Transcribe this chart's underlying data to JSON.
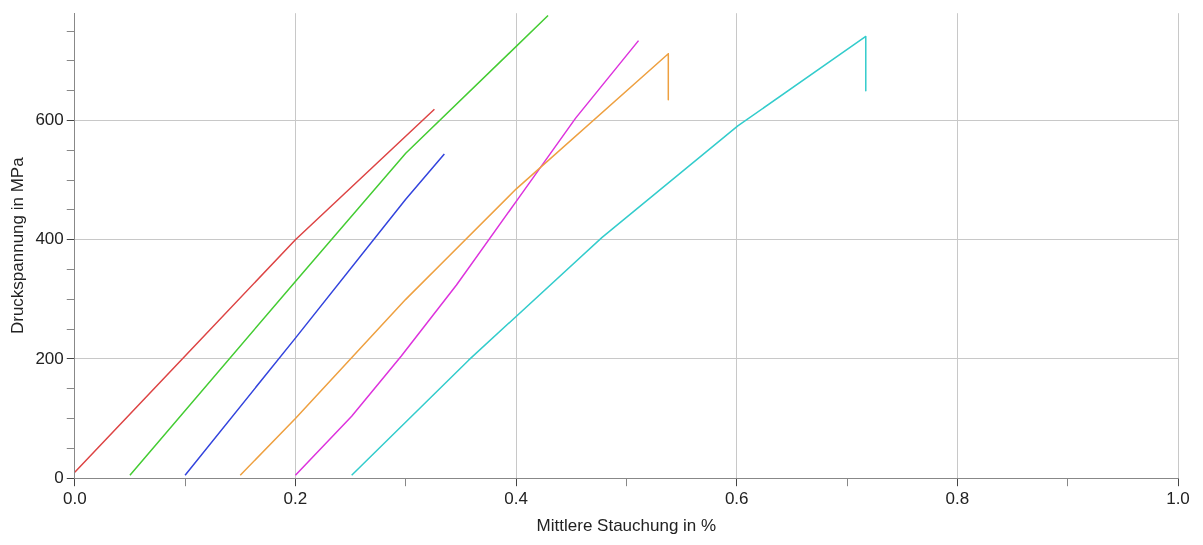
{
  "chart_data": {
    "type": "line",
    "xlabel": "Mittlere Stauchung in %",
    "ylabel": "Druckspannung in MPa",
    "xlim": [
      0,
      1
    ],
    "ylim": [
      0,
      780
    ],
    "xticks": [
      {
        "value": 0,
        "label": "0.0"
      },
      {
        "value": 0.1,
        "label": null
      },
      {
        "value": 0.2,
        "label": "0.2"
      },
      {
        "value": 0.3,
        "label": null
      },
      {
        "value": 0.4,
        "label": "0.4"
      },
      {
        "value": 0.5,
        "label": null
      },
      {
        "value": 0.6,
        "label": "0.6"
      },
      {
        "value": 0.7,
        "label": null
      },
      {
        "value": 0.8,
        "label": "0.8"
      },
      {
        "value": 0.9,
        "label": null
      },
      {
        "value": 1,
        "label": "1.0"
      }
    ],
    "yticks": [
      0,
      {
        "value": 50,
        "label": null
      },
      {
        "value": 100,
        "label": null
      },
      {
        "value": 150,
        "label": null
      },
      200,
      {
        "value": 250,
        "label": null
      },
      {
        "value": 300,
        "label": null
      },
      {
        "value": 350,
        "label": null
      },
      400,
      {
        "value": 450,
        "label": null
      },
      {
        "value": 500,
        "label": null
      },
      {
        "value": 550,
        "label": null
      },
      600,
      {
        "value": 650,
        "label": null
      },
      {
        "value": 700,
        "label": null
      },
      {
        "value": 750,
        "label": null
      }
    ],
    "grid": true,
    "legend": false,
    "marker": "none",
    "line_style": "solid",
    "series": [
      {
        "color": "#dd4444",
        "x": [
          0,
          0.1,
          0.2,
          0.326
        ],
        "values": [
          10,
          205,
          400,
          619
        ]
      },
      {
        "color": "#44cc33",
        "x": [
          0.05,
          0.2,
          0.3,
          0.429
        ],
        "values": [
          5,
          330,
          545,
          776
        ]
      },
      {
        "color": "#3344dd",
        "x": [
          0.1,
          0.2,
          0.3,
          0.335
        ],
        "values": [
          5,
          235,
          468,
          544
        ]
      },
      {
        "color": "#eea040",
        "x": [
          0.15,
          0.2,
          0.3,
          0.4,
          0.538,
          0.538
        ],
        "values": [
          5,
          100,
          300,
          485,
          712,
          635
        ]
      },
      {
        "color": "#dd33dd",
        "x": [
          0.2,
          0.251,
          0.296,
          0.346,
          0.4,
          0.454,
          0.511
        ],
        "values": [
          5,
          104,
          205,
          324,
          464,
          604,
          734
        ]
      },
      {
        "color": "#33cccc",
        "x": [
          0.251,
          0.357,
          0.478,
          0.601,
          0.717,
          0.717
        ],
        "values": [
          5,
          198,
          404,
          591,
          741,
          650
        ]
      }
    ]
  }
}
